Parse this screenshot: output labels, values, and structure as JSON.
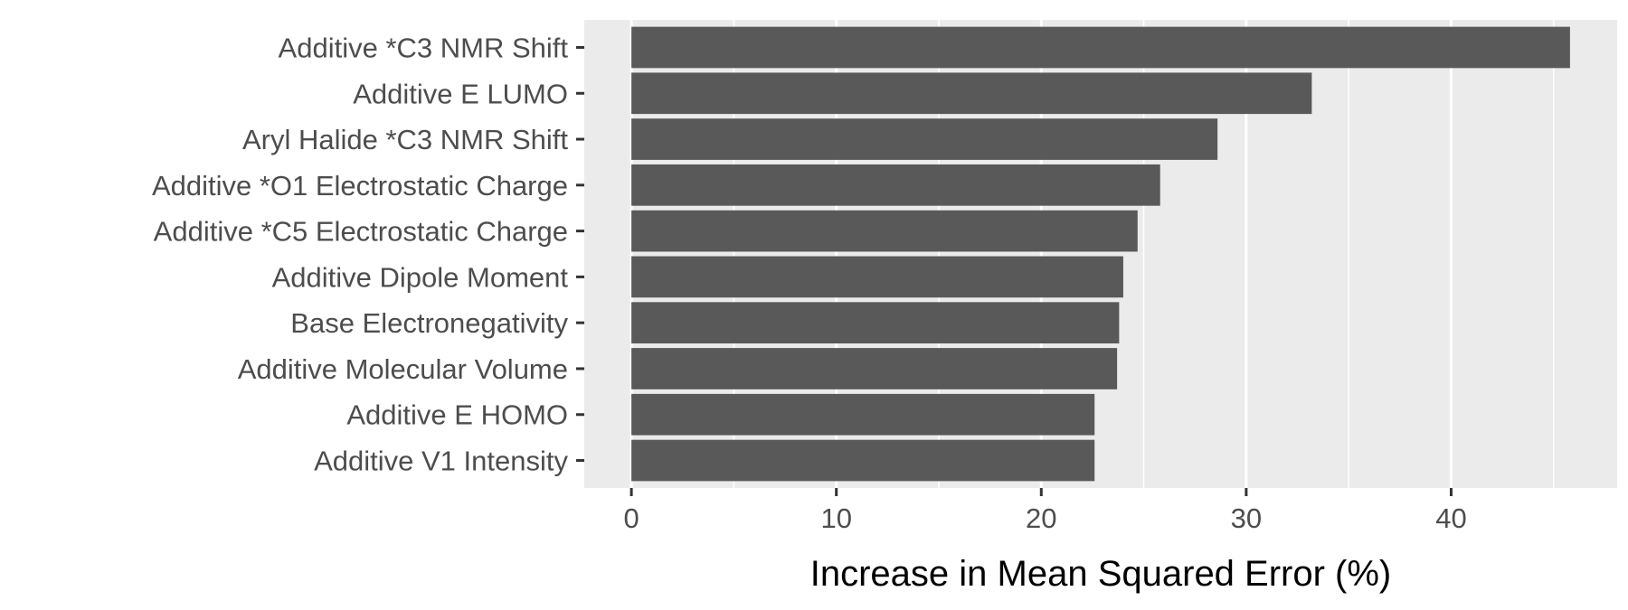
{
  "chart_data": {
    "type": "bar",
    "orientation": "horizontal",
    "title": "",
    "xlabel": "Increase in Mean Squared Error (%)",
    "ylabel": "",
    "categories": [
      "Additive *C3 NMR Shift",
      "Additive E LUMO",
      "Aryl Halide *C3 NMR Shift",
      "Additive *O1 Electrostatic Charge",
      "Additive *C5 Electrostatic Charge",
      "Additive Dipole Moment",
      "Base Electronegativity",
      "Additive Molecular Volume",
      "Additive E HOMO",
      "Additive V1 Intensity"
    ],
    "values": [
      45.8,
      33.2,
      28.6,
      25.8,
      24.7,
      24.0,
      23.8,
      23.7,
      22.6,
      22.6
    ],
    "xlim": [
      -2.3,
      48.1
    ],
    "xticks": [
      0,
      10,
      20,
      30,
      40
    ],
    "grid": true,
    "legend": "none",
    "colors": {
      "bar": "#595959",
      "panel": "#ebebeb",
      "grid": "#ffffff"
    }
  }
}
